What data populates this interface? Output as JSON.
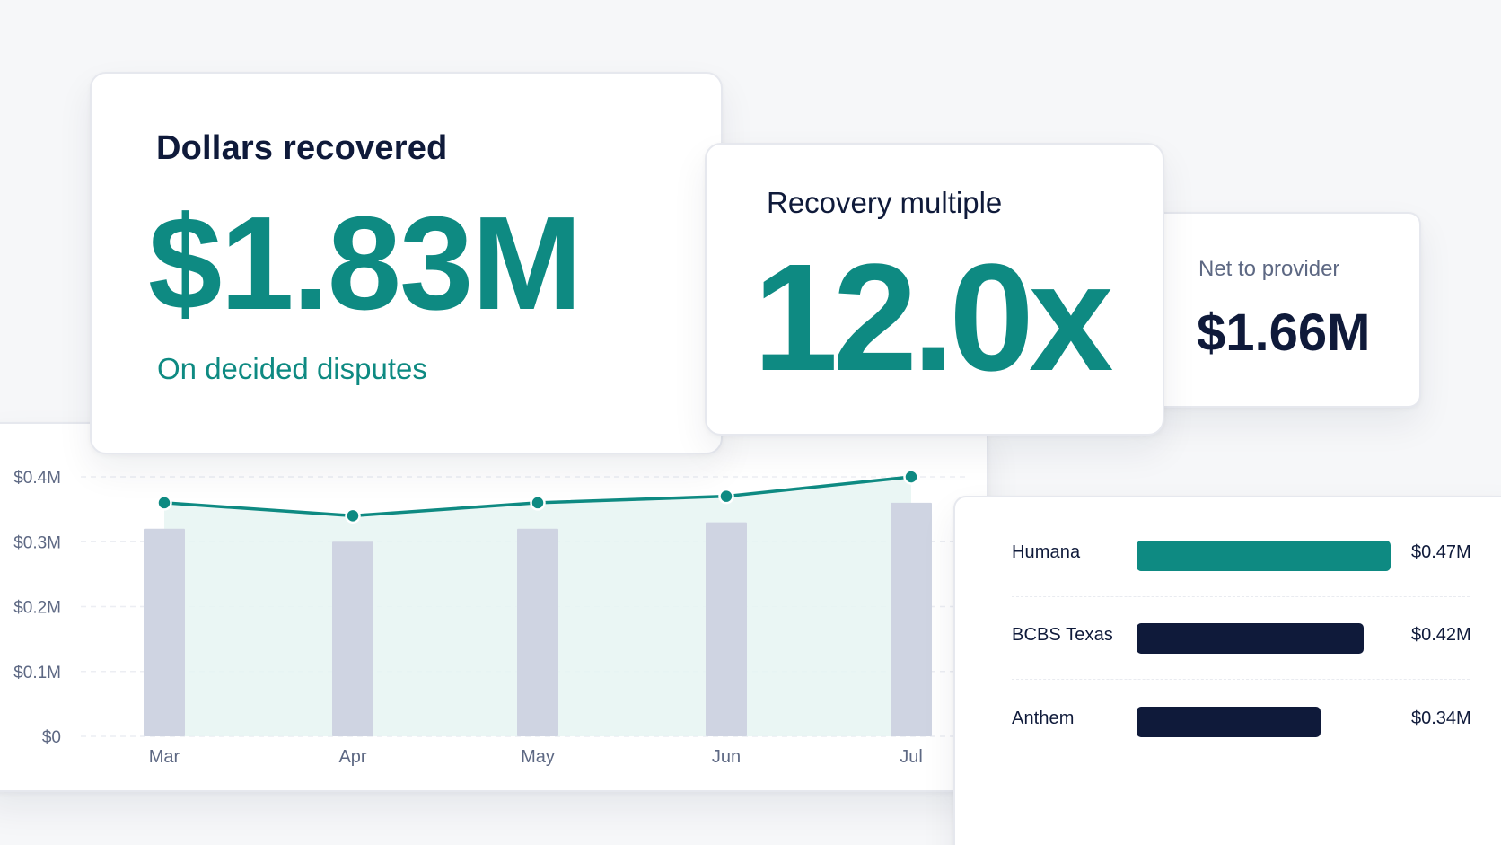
{
  "colors": {
    "accent": "#0e8a82",
    "navy": "#0f1a3a",
    "bar_gray": "#cfd4e2",
    "area_fill": "#e6f4f2"
  },
  "cards": {
    "dollars": {
      "title": "Dollars recovered",
      "value": "$1.83M",
      "subtitle": "On decided disputes"
    },
    "multiple": {
      "title": "Recovery multiple",
      "value": "12.0x"
    },
    "net": {
      "title": "Net to provider",
      "value": "$1.66M"
    }
  },
  "chart_data": {
    "type": "bar",
    "categories": [
      "Mar",
      "Apr",
      "May",
      "Jun",
      "Jul"
    ],
    "series": [
      {
        "type": "bar",
        "values": [
          0.32,
          0.3,
          0.32,
          0.33,
          0.36
        ]
      },
      {
        "type": "line",
        "values": [
          0.36,
          0.34,
          0.36,
          0.37,
          0.4
        ]
      }
    ],
    "y_ticks": [
      "$0",
      "$0.1M",
      "$0.2M",
      "$0.3M",
      "$0.4M"
    ],
    "ylim": [
      0,
      0.4
    ],
    "grid": true
  },
  "payers": {
    "type": "bar",
    "orientation": "horizontal",
    "items": [
      {
        "name": "Humana",
        "value": 0.47,
        "label": "$0.47M",
        "color": "#0e8a82"
      },
      {
        "name": "BCBS Texas",
        "value": 0.42,
        "label": "$0.42M",
        "color": "#0f1a3a"
      },
      {
        "name": "Anthem",
        "value": 0.34,
        "label": "$0.34M",
        "color": "#0f1a3a"
      }
    ]
  }
}
